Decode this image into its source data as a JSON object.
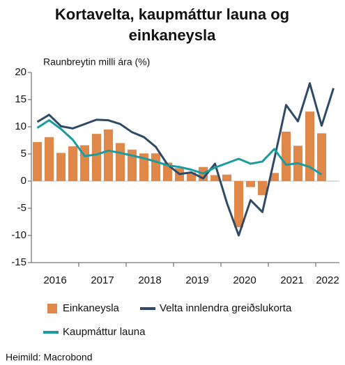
{
  "chart_data": {
    "type": "bar-line",
    "title": [
      "Kortavelta, kaupmáttur launa og",
      "einkaneysla"
    ],
    "y_label": "Raunbreytin milli ára (%)",
    "source": "Heimild: Macrobond",
    "year_labels": [
      "2016",
      "2017",
      "2018",
      "2019",
      "2020",
      "2021",
      "2022"
    ],
    "categories": [
      null,
      null,
      null,
      null,
      null,
      null,
      null,
      null,
      null,
      null,
      null,
      null,
      null,
      null,
      null,
      null,
      null,
      null,
      null,
      null,
      null,
      null,
      null,
      null,
      null,
      null
    ],
    "ylim": [
      -15,
      20
    ],
    "yticks": [
      -15,
      -10,
      -5,
      0,
      5,
      10,
      15,
      20
    ],
    "series": [
      {
        "name": "Einkaneysla",
        "kind": "bar",
        "color": "#e0874a",
        "values": [
          7.2,
          8.1,
          5.2,
          6.4,
          6.6,
          8.7,
          9.5,
          7.0,
          5.8,
          5.1,
          5.1,
          3.4,
          2.4,
          1.6,
          2.6,
          1.1,
          1.2,
          -8.5,
          -1.1,
          -2.6,
          1.5,
          9.1,
          6.5,
          12.8,
          8.8,
          null
        ]
      },
      {
        "name": "Velta innlendra greiðslukorta",
        "kind": "line",
        "color": "#2e4a66",
        "values": [
          10.9,
          12.2,
          10.1,
          9.7,
          10.5,
          11.3,
          11.2,
          10.5,
          9.0,
          8.1,
          6.3,
          3.0,
          1.3,
          1.6,
          0.5,
          3.2,
          -4.0,
          -10.0,
          -3.5,
          -5.7,
          4.0,
          14.0,
          11.0,
          18.0,
          10.2,
          17.1
        ]
      },
      {
        "name": "Kaupmáttur launa",
        "kind": "line",
        "color": "#1a9ba0",
        "values": [
          9.8,
          11.2,
          9.6,
          7.6,
          4.6,
          4.9,
          5.6,
          5.2,
          4.7,
          4.2,
          3.6,
          2.9,
          2.6,
          2.1,
          1.4,
          2.5,
          3.3,
          4.1,
          3.2,
          3.6,
          5.9,
          3.0,
          3.3,
          2.6,
          1.2,
          null
        ]
      }
    ]
  }
}
